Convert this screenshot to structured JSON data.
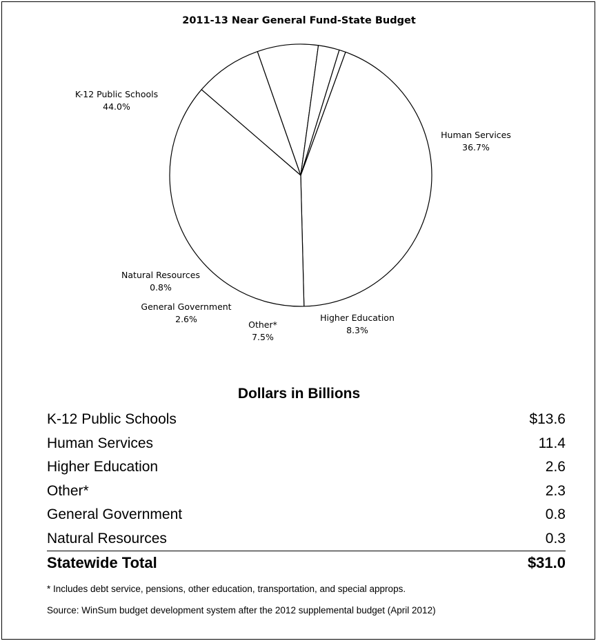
{
  "chart_data": {
    "type": "pie",
    "title": "2011-13 Near General Fund-State Budget",
    "slices": [
      {
        "label": "K-12 Public Schools",
        "percent_label": "44.0%",
        "value": 44.0
      },
      {
        "label": "Human Services",
        "percent_label": "36.7%",
        "value": 36.7
      },
      {
        "label": "Higher Education",
        "percent_label": "8.3%",
        "value": 8.3
      },
      {
        "label": "Other*",
        "percent_label": "7.5%",
        "value": 7.5
      },
      {
        "label": "General Government",
        "percent_label": "2.6%",
        "value": 2.6
      },
      {
        "label": "Natural Resources",
        "percent_label": "0.8%",
        "value": 0.8
      }
    ],
    "fill_color": "#ffffff",
    "line_color": "#000000"
  },
  "table": {
    "heading": "Dollars in Billions",
    "rows": [
      {
        "label": "K-12 Public Schools",
        "value": "$13.6"
      },
      {
        "label": "Human Services",
        "value": "11.4"
      },
      {
        "label": "Higher Education",
        "value": "2.6"
      },
      {
        "label": "Other*",
        "value": "2.3"
      },
      {
        "label": "General Government",
        "value": "0.8"
      },
      {
        "label": "Natural Resources",
        "value": "0.3"
      }
    ],
    "total": {
      "label": "Statewide Total",
      "value": "$31.0"
    }
  },
  "footnote": "* Includes debt service, pensions, other education, transportation, and special approps.",
  "source": "Source:  WinSum budget development system after the 2012 supplemental budget (April 2012)"
}
